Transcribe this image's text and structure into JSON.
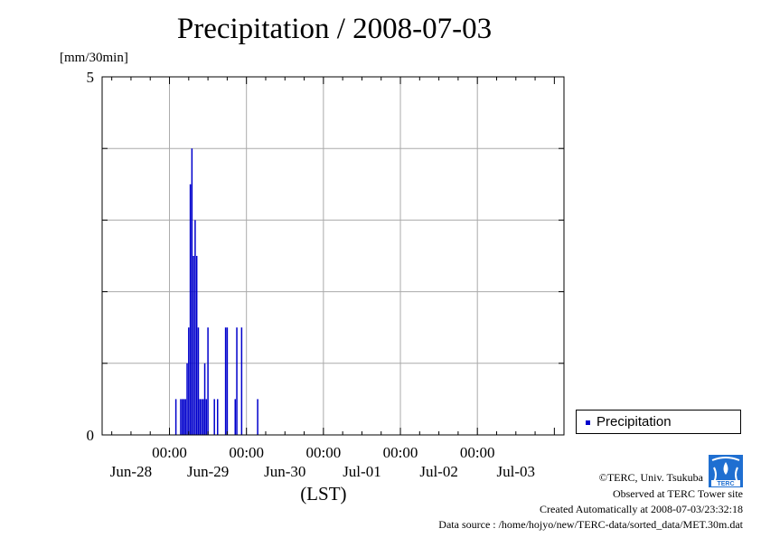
{
  "title": "Precipitation / 2008-07-03",
  "unit_label": "[mm/30min]",
  "legend": {
    "label": "Precipitation"
  },
  "colors": {
    "series": "#0000cc",
    "grid": "#aaaaaa"
  },
  "footer": {
    "copyright": "©TERC, Univ. Tsukuba",
    "observed": "Observed at TERC Tower site",
    "created": "Created Automatically at 2008-07-03/23:32:18",
    "source": "Data source : /home/hojyo/new/TERC-data/sorted_data/MET.30m.dat"
  },
  "logo_icon": "terc-logo-icon",
  "chart_data": {
    "type": "bar",
    "title": "Precipitation / 2008-07-03",
    "ylabel": "[mm/30min]",
    "xlabel": "(LST)",
    "ylim": [
      0,
      5
    ],
    "yticks": [
      "0",
      "5"
    ],
    "xlim_hours": [
      -21,
      123
    ],
    "time_labels": [
      "00:00",
      "00:00",
      "00:00",
      "00:00",
      "00:00"
    ],
    "date_labels": [
      "Jun-28",
      "Jun-29",
      "Jun-30",
      "Jul-01",
      "Jul-02",
      "Jul-03"
    ],
    "grid": true,
    "legend_position": "right",
    "series": [
      {
        "name": "Precipitation",
        "x_hours": [
          2.0,
          3.5,
          4.0,
          4.5,
          5.0,
          5.5,
          6.0,
          6.5,
          7.0,
          7.5,
          8.0,
          8.5,
          9.0,
          9.5,
          10.0,
          10.5,
          11.0,
          11.5,
          12.0,
          14.0,
          15.0,
          17.5,
          18.0,
          20.5,
          21.0,
          22.5,
          27.5
        ],
        "values": [
          0.5,
          0.5,
          0.5,
          0.5,
          0.5,
          1.0,
          1.5,
          3.5,
          4.0,
          2.5,
          3.0,
          2.5,
          1.5,
          0.5,
          0.5,
          0.5,
          1.0,
          0.5,
          1.5,
          0.5,
          0.5,
          1.5,
          1.5,
          0.5,
          1.5,
          1.5,
          0.5
        ]
      }
    ]
  }
}
